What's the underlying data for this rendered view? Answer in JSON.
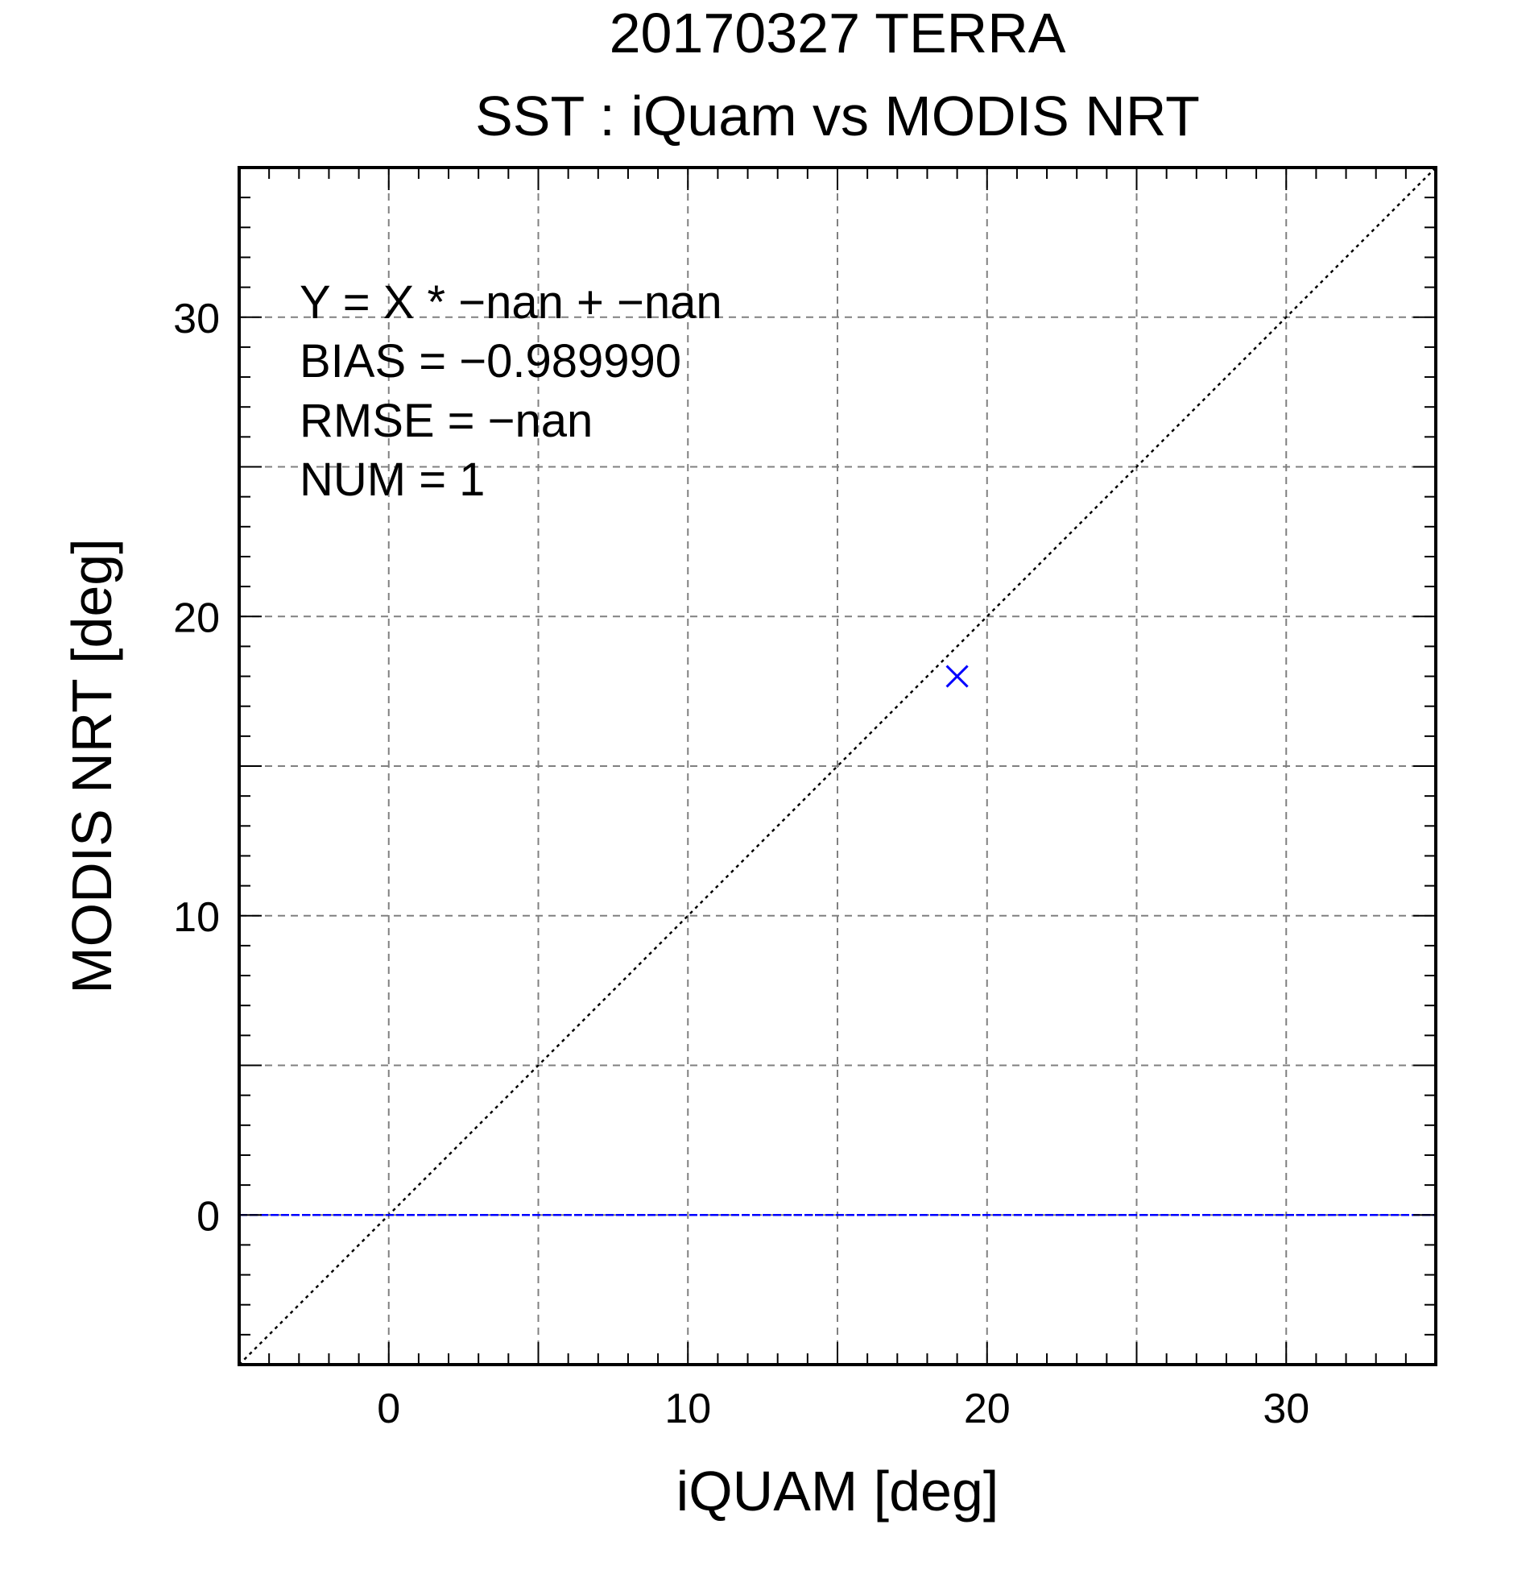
{
  "chart_data": {
    "type": "scatter",
    "title": "20170327 TERRA",
    "subtitle": "SST : iQuam vs MODIS NRT",
    "xlabel": "iQUAM [deg]",
    "ylabel": "MODIS NRT [deg]",
    "xlim": [
      -5,
      35
    ],
    "ylim": [
      -5,
      35
    ],
    "xticks": [
      0,
      10,
      20,
      30
    ],
    "yticks": [
      0,
      10,
      20,
      30
    ],
    "grid": true,
    "points": [
      {
        "x": 19,
        "y": 18
      }
    ],
    "reference_lines": [
      {
        "kind": "identity",
        "style": "dotted",
        "color": "#000000"
      },
      {
        "kind": "horizontal",
        "y": 0,
        "style": "dashed",
        "color": "#0000ff"
      }
    ],
    "annotations": [
      "Y = X * −nan + −nan",
      "BIAS = −0.989990",
      "RMSE = −nan",
      "NUM = 1"
    ],
    "colors": {
      "marker": "#0000ff",
      "fit_line": "#0000ff",
      "identity_line": "#000000",
      "grid": "#808080",
      "axes": "#000000"
    }
  }
}
